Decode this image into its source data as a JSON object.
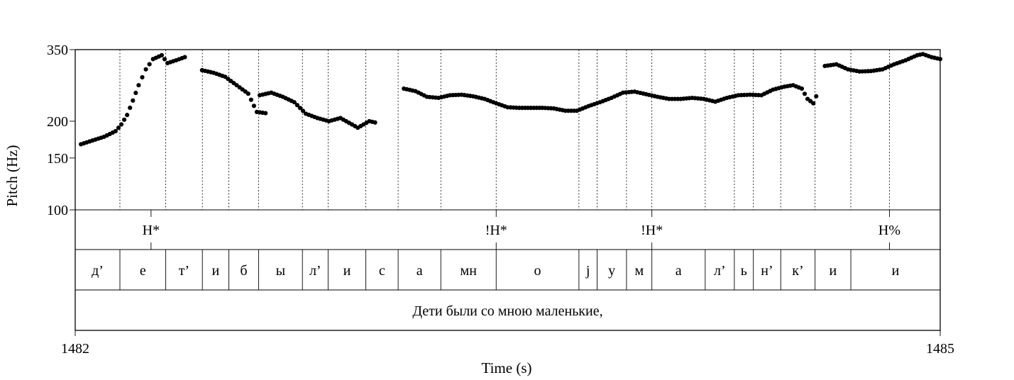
{
  "chart_data": {
    "type": "scatter",
    "xlabel": "Time (s)",
    "ylabel": "Pitch (Hz)",
    "xlim": [
      1482,
      1485
    ],
    "ylim": [
      100,
      350
    ],
    "y_scale": "log",
    "x_ticks": [
      "1482",
      "1485"
    ],
    "y_ticks": [
      "350",
      "200",
      "150",
      "100"
    ],
    "y_tick_values": [
      350,
      200,
      150,
      100
    ],
    "segment_boundaries": [
      1482.155,
      1482.314,
      1482.441,
      1482.533,
      1482.636,
      1482.788,
      1482.877,
      1483.008,
      1483.12,
      1483.268,
      1483.46,
      1483.747,
      1483.81,
      1483.912,
      1484.0,
      1484.185,
      1484.286,
      1484.352,
      1484.447,
      1484.566,
      1484.69,
      1484.824
    ],
    "tones": [
      {
        "label": "H*",
        "time": 1482.263
      },
      {
        "label": "!H*",
        "time": 1483.46
      },
      {
        "label": "!H*",
        "time": 1484.0
      },
      {
        "label": "H%",
        "time": 1484.824
      }
    ],
    "segments": [
      {
        "label": "д’",
        "start": 1482.0,
        "end": 1482.155
      },
      {
        "label": "е",
        "start": 1482.155,
        "end": 1482.314
      },
      {
        "label": "т’",
        "start": 1482.314,
        "end": 1482.441
      },
      {
        "label": "и",
        "start": 1482.441,
        "end": 1482.533
      },
      {
        "label": "б",
        "start": 1482.533,
        "end": 1482.636
      },
      {
        "label": "ы",
        "start": 1482.636,
        "end": 1482.788
      },
      {
        "label": "л’",
        "start": 1482.788,
        "end": 1482.877
      },
      {
        "label": "и",
        "start": 1482.877,
        "end": 1483.008
      },
      {
        "label": "с",
        "start": 1483.008,
        "end": 1483.12
      },
      {
        "label": "а",
        "start": 1483.12,
        "end": 1483.268
      },
      {
        "label": "мн",
        "start": 1483.268,
        "end": 1483.46
      },
      {
        "label": "о",
        "start": 1483.46,
        "end": 1483.747
      },
      {
        "label": "j",
        "start": 1483.747,
        "end": 1483.81
      },
      {
        "label": "у",
        "start": 1483.81,
        "end": 1483.912
      },
      {
        "label": "м",
        "start": 1483.912,
        "end": 1484.0
      },
      {
        "label": "а",
        "start": 1484.0,
        "end": 1484.185
      },
      {
        "label": "л’",
        "start": 1484.185,
        "end": 1484.286
      },
      {
        "label": "ь",
        "start": 1484.286,
        "end": 1484.352
      },
      {
        "label": "н’",
        "start": 1484.352,
        "end": 1484.447
      },
      {
        "label": "к’",
        "start": 1484.447,
        "end": 1484.566
      },
      {
        "label": "и",
        "start": 1484.566,
        "end": 1484.69
      },
      {
        "label": "и",
        "start": 1484.69,
        "end": 1485.0
      }
    ],
    "words": [
      {
        "label": "Дети были со мною маленькие,",
        "start": 1482.0,
        "end": 1485.0
      }
    ],
    "pitch_contour": [
      [
        [
          1482.02,
          167
        ],
        [
          1482.06,
          172
        ],
        [
          1482.1,
          177
        ],
        [
          1482.14,
          185
        ],
        [
          1482.16,
          195
        ],
        [
          1482.18,
          210
        ],
        [
          1482.2,
          235
        ],
        [
          1482.22,
          265
        ],
        [
          1482.245,
          300
        ],
        [
          1482.27,
          325
        ],
        [
          1482.3,
          335
        ],
        [
          1482.32,
          315
        ],
        [
          1482.35,
          322
        ],
        [
          1482.38,
          330
        ]
      ],
      [
        [
          1482.44,
          298
        ],
        [
          1482.48,
          292
        ],
        [
          1482.52,
          283
        ],
        [
          1482.56,
          265
        ],
        [
          1482.6,
          248
        ],
        [
          1482.63,
          215
        ],
        [
          1482.66,
          213
        ]
      ],
      [
        [
          1482.64,
          245
        ],
        [
          1482.68,
          250
        ],
        [
          1482.72,
          242
        ],
        [
          1482.76,
          232
        ],
        [
          1482.8,
          212
        ],
        [
          1482.84,
          205
        ],
        [
          1482.88,
          200
        ],
        [
          1482.92,
          205
        ],
        [
          1482.96,
          195
        ],
        [
          1482.98,
          190
        ],
        [
          1483.02,
          200
        ],
        [
          1483.04,
          198
        ]
      ],
      [
        [
          1483.14,
          258
        ],
        [
          1483.18,
          253
        ],
        [
          1483.22,
          242
        ],
        [
          1483.26,
          240
        ],
        [
          1483.3,
          245
        ],
        [
          1483.34,
          246
        ],
        [
          1483.38,
          243
        ],
        [
          1483.42,
          238
        ],
        [
          1483.46,
          230
        ],
        [
          1483.5,
          223
        ],
        [
          1483.54,
          222
        ],
        [
          1483.58,
          222
        ],
        [
          1483.62,
          222
        ],
        [
          1483.66,
          221
        ],
        [
          1483.7,
          217
        ],
        [
          1483.74,
          217
        ],
        [
          1483.78,
          225
        ],
        [
          1483.82,
          232
        ],
        [
          1483.86,
          240
        ],
        [
          1483.9,
          250
        ],
        [
          1483.94,
          252
        ],
        [
          1483.98,
          247
        ],
        [
          1484.02,
          242
        ],
        [
          1484.06,
          238
        ],
        [
          1484.1,
          238
        ],
        [
          1484.14,
          240
        ],
        [
          1484.18,
          238
        ],
        [
          1484.22,
          233
        ],
        [
          1484.26,
          240
        ],
        [
          1484.3,
          245
        ],
        [
          1484.34,
          246
        ],
        [
          1484.38,
          245
        ],
        [
          1484.42,
          256
        ],
        [
          1484.46,
          262
        ],
        [
          1484.49,
          265
        ],
        [
          1484.52,
          258
        ],
        [
          1484.54,
          238
        ],
        [
          1484.56,
          230
        ],
        [
          1484.57,
          243
        ]
      ],
      [
        [
          1484.6,
          308
        ],
        [
          1484.64,
          312
        ],
        [
          1484.68,
          300
        ],
        [
          1484.72,
          295
        ],
        [
          1484.76,
          296
        ],
        [
          1484.8,
          300
        ],
        [
          1484.84,
          312
        ],
        [
          1484.88,
          322
        ],
        [
          1484.92,
          335
        ],
        [
          1484.94,
          338
        ],
        [
          1484.97,
          330
        ],
        [
          1485.0,
          325
        ]
      ]
    ]
  }
}
